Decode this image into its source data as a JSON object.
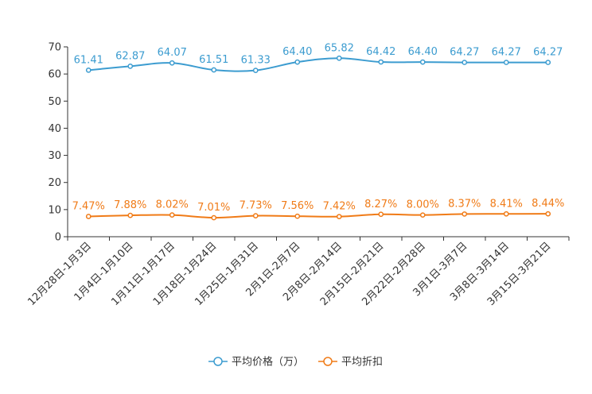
{
  "chart_data": {
    "type": "line",
    "categories": [
      "12月28日-1月3日",
      "1月4日-1月10日",
      "1月11日-1月17日",
      "1月18日-1月24日",
      "1月25日-1月31日",
      "2月1日-2月7日",
      "2月8日-2月14日",
      "2月15日-2月21日",
      "2月22日-2月28日",
      "3月1日-3月7日",
      "3月8日-3月14日",
      "3月15日-3月21日"
    ],
    "series": [
      {
        "name": "平均价格（万）",
        "color": "#3c9cd0",
        "values": [
          61.41,
          62.87,
          64.07,
          61.51,
          61.33,
          64.4,
          65.82,
          64.42,
          64.4,
          64.27,
          64.27,
          64.27
        ],
        "labels": [
          "61.41",
          "62.87",
          "64.07",
          "61.51",
          "61.33",
          "64.40",
          "65.82",
          "64.42",
          "64.40",
          "64.27",
          "64.27",
          "64.27"
        ]
      },
      {
        "name": "平均折扣",
        "color": "#f07b17",
        "values": [
          7.47,
          7.88,
          8.02,
          7.01,
          7.73,
          7.56,
          7.42,
          8.27,
          8.0,
          8.37,
          8.41,
          8.44
        ],
        "labels": [
          "7.47%",
          "7.88%",
          "8.02%",
          "7.01%",
          "7.73%",
          "7.56%",
          "7.42%",
          "8.27%",
          "8.00%",
          "8.37%",
          "8.41%",
          "8.44%"
        ]
      }
    ],
    "yticks": [
      0,
      10,
      20,
      30,
      40,
      50,
      60,
      70
    ],
    "ylim": [
      0,
      70
    ],
    "title": "",
    "xlabel": "",
    "ylabel": "",
    "legend": "bottom-center"
  }
}
